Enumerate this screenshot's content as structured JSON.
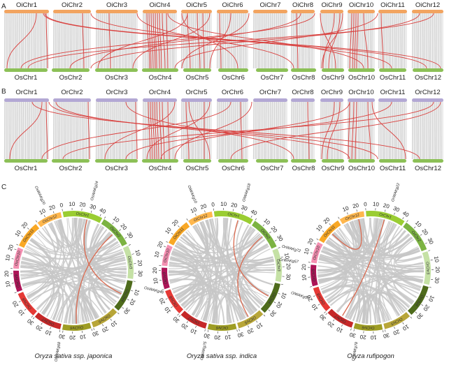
{
  "colors": {
    "oi_bar": "#f2a460",
    "os_bar": "#8cc057",
    "or_bar": "#b3a8d4",
    "synteny_grey": "#d9d9d9",
    "synteny_red": "#d9413f",
    "circos_link_grey": "#c7c7c7",
    "circos_link_red": "#d96a50"
  },
  "panel_a": {
    "label": "A",
    "top_chromosomes": [
      "OiChr1",
      "OiChr2",
      "OiChr3",
      "OiChr4",
      "OiChr5",
      "OiChr6",
      "OiChr7",
      "OiChr8",
      "OiChr9",
      "OiChr10",
      "OiChr11",
      "OiChr12"
    ],
    "bottom_chromosomes": [
      "OsChr1",
      "OsChr2",
      "OsChr3",
      "OsChr4",
      "OsChr5",
      "OsChr6",
      "OsChr7",
      "OsChr8",
      "OsChr9",
      "OsChr10",
      "OsChr11",
      "OsChr12"
    ]
  },
  "panel_b": {
    "label": "B",
    "top_chromosomes": [
      "OrChr1",
      "OrChr2",
      "OrChr3",
      "OrChr4",
      "OrChr5",
      "OrChr6",
      "OrChr7",
      "OrChr8",
      "OrChr9",
      "OrChr10",
      "OrChr11",
      "OrChr12"
    ],
    "bottom_chromosomes": [
      "OsChr1",
      "OsChr2",
      "OsChr3",
      "OsChr4",
      "OsChr5",
      "OsChr6",
      "OsChr7",
      "OsChr8",
      "OsChr9",
      "OsChr10",
      "OsChr11",
      "OsChr12"
    ]
  },
  "panel_c": {
    "label": "C",
    "circles": [
      {
        "title": "Oryza sativa ssp. japonica",
        "chromosomes": [
          "OsChr1",
          "OsChr2",
          "OsChr3",
          "OsChr4",
          "OsChr5",
          "OsChr6",
          "OsChr7",
          "OsChr8",
          "OsChr9",
          "OsChr10",
          "OsChr11",
          "OsChr12"
        ],
        "gene_labels": [
          "OsWAKg20",
          "OsWAKg24",
          "OsWAKg46",
          "OsWAKg68"
        ]
      },
      {
        "title": "Oryza sativa ssp. indica",
        "chromosomes": [
          "OiChr1",
          "OiChr2",
          "OiChr3",
          "OiChr4",
          "OiChr5",
          "OiChr6",
          "OiChr7",
          "OiChr8",
          "OiChr9",
          "OiChr10",
          "OiChr11",
          "OiChr12"
        ],
        "gene_labels": [
          "OiWAKg10",
          "OiWAKg18",
          "OiWAKg57",
          "OiWAKg75"
        ]
      },
      {
        "title": "Oryza rufipogon",
        "chromosomes": [
          "OrChr1",
          "OrChr2",
          "OrChr3",
          "OrChr4",
          "OrChr5",
          "OrChr6",
          "OrChr7",
          "OrChr8",
          "OrChr9",
          "OrChr10",
          "OrChr11",
          "OrChr12"
        ],
        "gene_labels": [
          "OrWAKg22",
          "OrWAKg57",
          "OrWAKg72",
          "OrWAKg78"
        ]
      }
    ],
    "chromosome_colors": [
      "#9acd32",
      "#7cb342",
      "#c5e1a5",
      "#4e6b1c",
      "#b8a638",
      "#9e9d24",
      "#c62828",
      "#e53935",
      "#ad1457",
      "#f48fb1",
      "#f9a825",
      "#ffb74d"
    ]
  }
}
